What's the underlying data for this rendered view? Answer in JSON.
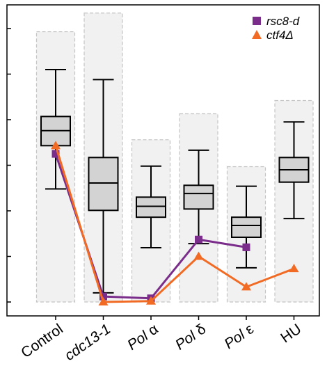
{
  "chart_data": {
    "type": "box",
    "title": "",
    "xlabel": "",
    "ylabel": "",
    "ylim": [
      0,
      6.3
    ],
    "y_ticks": [
      0,
      1,
      2,
      3,
      4,
      5,
      6
    ],
    "y_tick_labels_visible": false,
    "grid": false,
    "legend_position": "top-right",
    "categories": [
      {
        "label": "Control",
        "italic": false
      },
      {
        "label": "cdc13-1",
        "italic": true
      },
      {
        "label": "Pol α",
        "italic": false,
        "italic_part": "Pol"
      },
      {
        "label": "Pol δ",
        "italic": false,
        "italic_part": "Pol"
      },
      {
        "label": "Pol ε",
        "italic": false,
        "italic_part": "Pol"
      },
      {
        "label": "HU",
        "italic": false
      }
    ],
    "background_bars": [
      5.93,
      6.34,
      3.56,
      4.13,
      2.97,
      4.42
    ],
    "boxes": [
      {
        "whisker_low": 2.48,
        "q1": 3.43,
        "median": 3.76,
        "q3": 4.07,
        "whisker_high": 5.1
      },
      {
        "whisker_low": 0.2,
        "q1": 2.01,
        "median": 2.61,
        "q3": 3.17,
        "whisker_high": 4.88
      },
      {
        "whisker_low": 1.19,
        "q1": 1.86,
        "median": 2.1,
        "q3": 2.3,
        "whisker_high": 2.98
      },
      {
        "whisker_low": 1.28,
        "q1": 2.04,
        "median": 2.38,
        "q3": 2.56,
        "whisker_high": 3.33
      },
      {
        "whisker_low": 0.75,
        "q1": 1.42,
        "median": 1.68,
        "q3": 1.86,
        "whisker_high": 2.54
      },
      {
        "whisker_low": 1.83,
        "q1": 2.63,
        "median": 2.9,
        "q3": 3.17,
        "whisker_high": 3.95
      }
    ],
    "series": [
      {
        "name": "rsc8-d",
        "marker": "square",
        "color": "#7b2d8b",
        "values": [
          3.25,
          0.12,
          0.08,
          1.37,
          1.2,
          null
        ]
      },
      {
        "name": "ctf4Δ",
        "marker": "triangle",
        "color": "#f26b24",
        "values": [
          3.43,
          0.0,
          0.02,
          1.0,
          0.33,
          0.73
        ]
      }
    ]
  },
  "colors": {
    "box_fill": "#d3d3d3",
    "background_bar_fill": "#f1f1f1",
    "background_bar_stroke": "#c4c4c4",
    "box_stroke": "#000000"
  }
}
